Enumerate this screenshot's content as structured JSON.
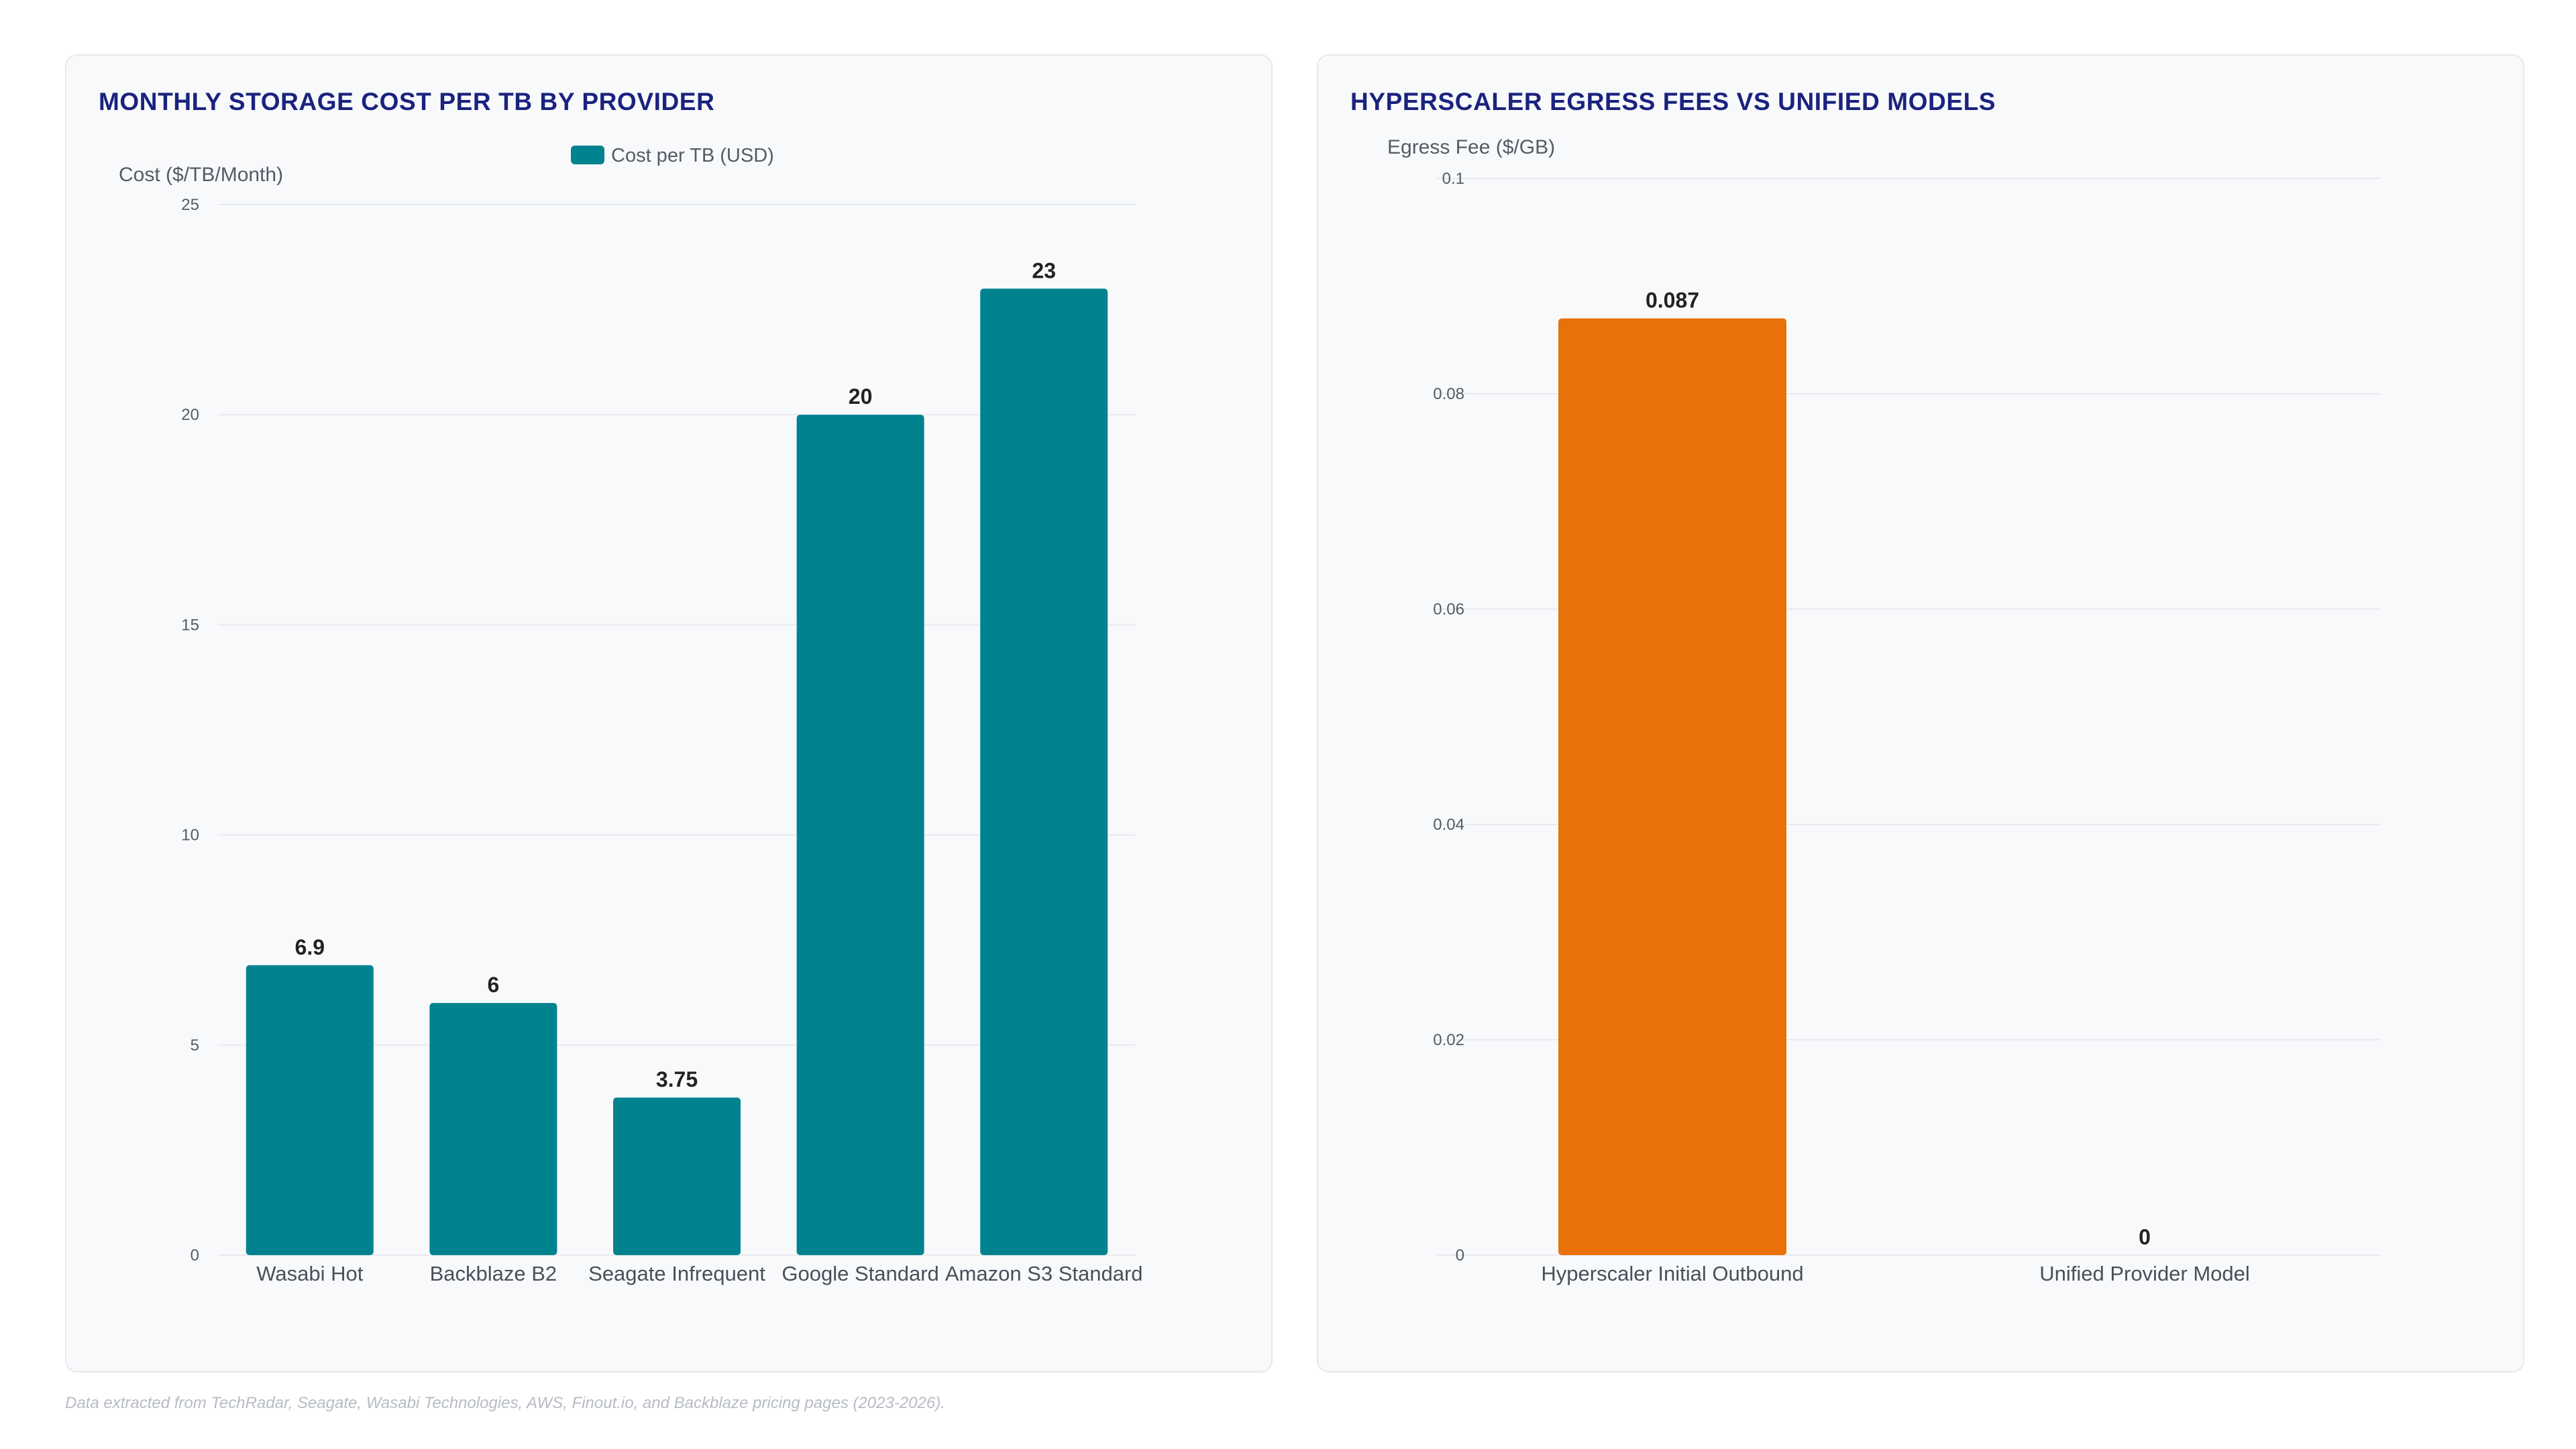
{
  "colors": {
    "teal": "#00838f",
    "orange": "#e8710a",
    "title": "#1a237e"
  },
  "footnote": "Data extracted from TechRadar, Seagate, Wasabi Technologies, AWS, Finout.io, and Backblaze pricing pages (2023-2026).",
  "chart_data": [
    {
      "type": "bar",
      "title": "MONTHLY STORAGE COST PER TB BY PROVIDER",
      "ylabel": "Cost ($/TB/Month)",
      "xlabel": "",
      "categories": [
        "Wasabi Hot",
        "Backblaze B2",
        "Seagate Infrequent",
        "Google Standard",
        "Amazon S3 Standard"
      ],
      "series": [
        {
          "name": "Cost per TB (USD)",
          "values": [
            6.9,
            6,
            3.75,
            20,
            23
          ],
          "color": "#00838f"
        }
      ],
      "value_labels": [
        "6.9",
        "6",
        "3.75",
        "20",
        "23"
      ],
      "ylim": [
        0,
        25
      ],
      "yticks": [
        "0",
        "5",
        "10",
        "15",
        "20",
        "25"
      ],
      "legend": "top-center",
      "grid": true
    },
    {
      "type": "bar",
      "title": "HYPERSCALER EGRESS FEES VS UNIFIED MODELS",
      "ylabel": "Egress Fee ($/GB)",
      "xlabel": "",
      "categories": [
        "Hyperscaler Initial Outbound",
        "Unified Provider Model"
      ],
      "series": [
        {
          "values": [
            0.087,
            0
          ],
          "colors": [
            "#e8710a",
            "#00838f"
          ]
        }
      ],
      "value_labels": [
        "0.087",
        "0"
      ],
      "ylim": [
        0,
        0.1
      ],
      "yticks": [
        "0",
        "0.02",
        "0.04",
        "0.06",
        "0.08",
        "0.1"
      ],
      "legend": "none",
      "grid": true
    }
  ]
}
